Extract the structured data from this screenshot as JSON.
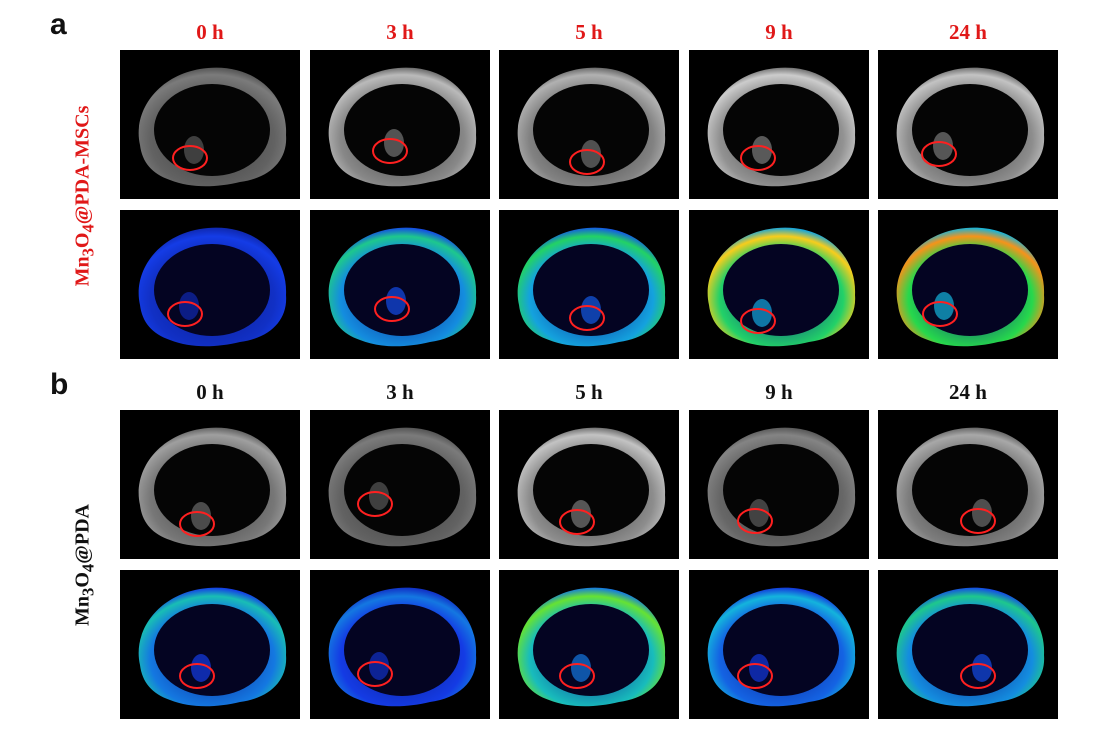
{
  "panels": [
    {
      "letter": "a",
      "row_label_html": "Mn<sub>3</sub>O<sub>4</sub>@PDA-MSCs",
      "row_label_text": "Mn3O4@PDA-MSCs",
      "label_color": "#e01818",
      "times": [
        "0 h",
        "3 h",
        "5 h",
        "9 h",
        "24 h"
      ],
      "rows": [
        {
          "kind": "grayscale",
          "intensity": [
            0.35,
            0.7,
            0.65,
            0.8,
            0.75
          ]
        },
        {
          "kind": "pseudocolor",
          "intensity": [
            0.25,
            0.55,
            0.6,
            0.85,
            0.9
          ]
        }
      ]
    },
    {
      "letter": "b",
      "row_label_html": "Mn<sub>3</sub>O<sub>4</sub>@PDA",
      "row_label_text": "Mn3O4@PDA",
      "label_color": "#111111",
      "times": [
        "0 h",
        "3 h",
        "5 h",
        "9 h",
        "24 h"
      ],
      "rows": [
        {
          "kind": "grayscale",
          "intensity": [
            0.55,
            0.35,
            0.75,
            0.4,
            0.6
          ]
        },
        {
          "kind": "pseudocolor",
          "intensity": [
            0.5,
            0.35,
            0.7,
            0.45,
            0.55
          ]
        }
      ]
    }
  ],
  "colors": {
    "roi_circle": "#ff2020",
    "background": "#000000"
  }
}
